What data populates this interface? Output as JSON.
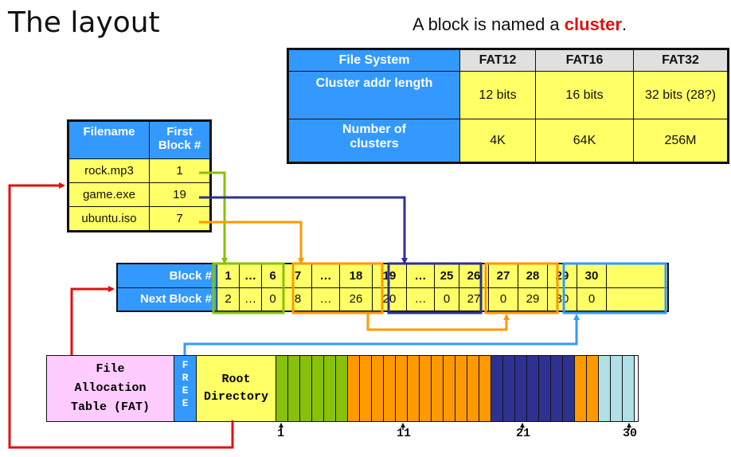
{
  "title": "The layout",
  "caption": {
    "prefix": "A block is named a ",
    "highlight": "cluster",
    "suffix": "."
  },
  "fs_table": {
    "headers": [
      "File System",
      "FAT12",
      "FAT16",
      "FAT32"
    ],
    "row1": {
      "label": "Cluster addr  length",
      "values": [
        "12 bits",
        "16 bits",
        "32 bits (28?)"
      ]
    },
    "row2": {
      "label1": "Number of",
      "label2": "clusters",
      "values": [
        "4K",
        "64K",
        "256M"
      ]
    }
  },
  "dir_table": {
    "headers": [
      "Filename",
      "First",
      "Block #"
    ],
    "rows": [
      {
        "name": "rock.mp3",
        "block": "1"
      },
      {
        "name": "game.exe",
        "block": "19"
      },
      {
        "name": "ubuntu.iso",
        "block": "7"
      }
    ]
  },
  "block_table": {
    "row_labels": [
      "Block #",
      "Next Block #"
    ],
    "blocks": [
      "1",
      "…",
      "6",
      "7",
      "…",
      "18",
      "19",
      "…",
      "25",
      "26",
      "27",
      "28",
      "29",
      "30",
      ""
    ],
    "next": [
      "2",
      "…",
      "0",
      "8",
      "…",
      "26",
      "20",
      "…",
      "0",
      "27",
      "0",
      "29",
      "30",
      "0",
      ""
    ]
  },
  "disk": {
    "fat_label": [
      "File",
      "Allocation",
      "Table (FAT)"
    ],
    "free_label": [
      "F",
      "R",
      "E",
      "E"
    ],
    "root_label": [
      "Root",
      "Directory"
    ],
    "ticks": [
      "1",
      "11",
      "21",
      "30"
    ]
  },
  "colors": {
    "rock": "#88c00a",
    "game": "#2e3192",
    "ubuntu": "#ff9900",
    "free": "#3399ff",
    "fat_arrow": "#e01010",
    "header_blue": "#3399ff",
    "cell_yellow": "#ffff66",
    "fat_pink": "#ffccff",
    "root_yellow": "#ffff66",
    "free_cluster": "#b0e0e6"
  }
}
